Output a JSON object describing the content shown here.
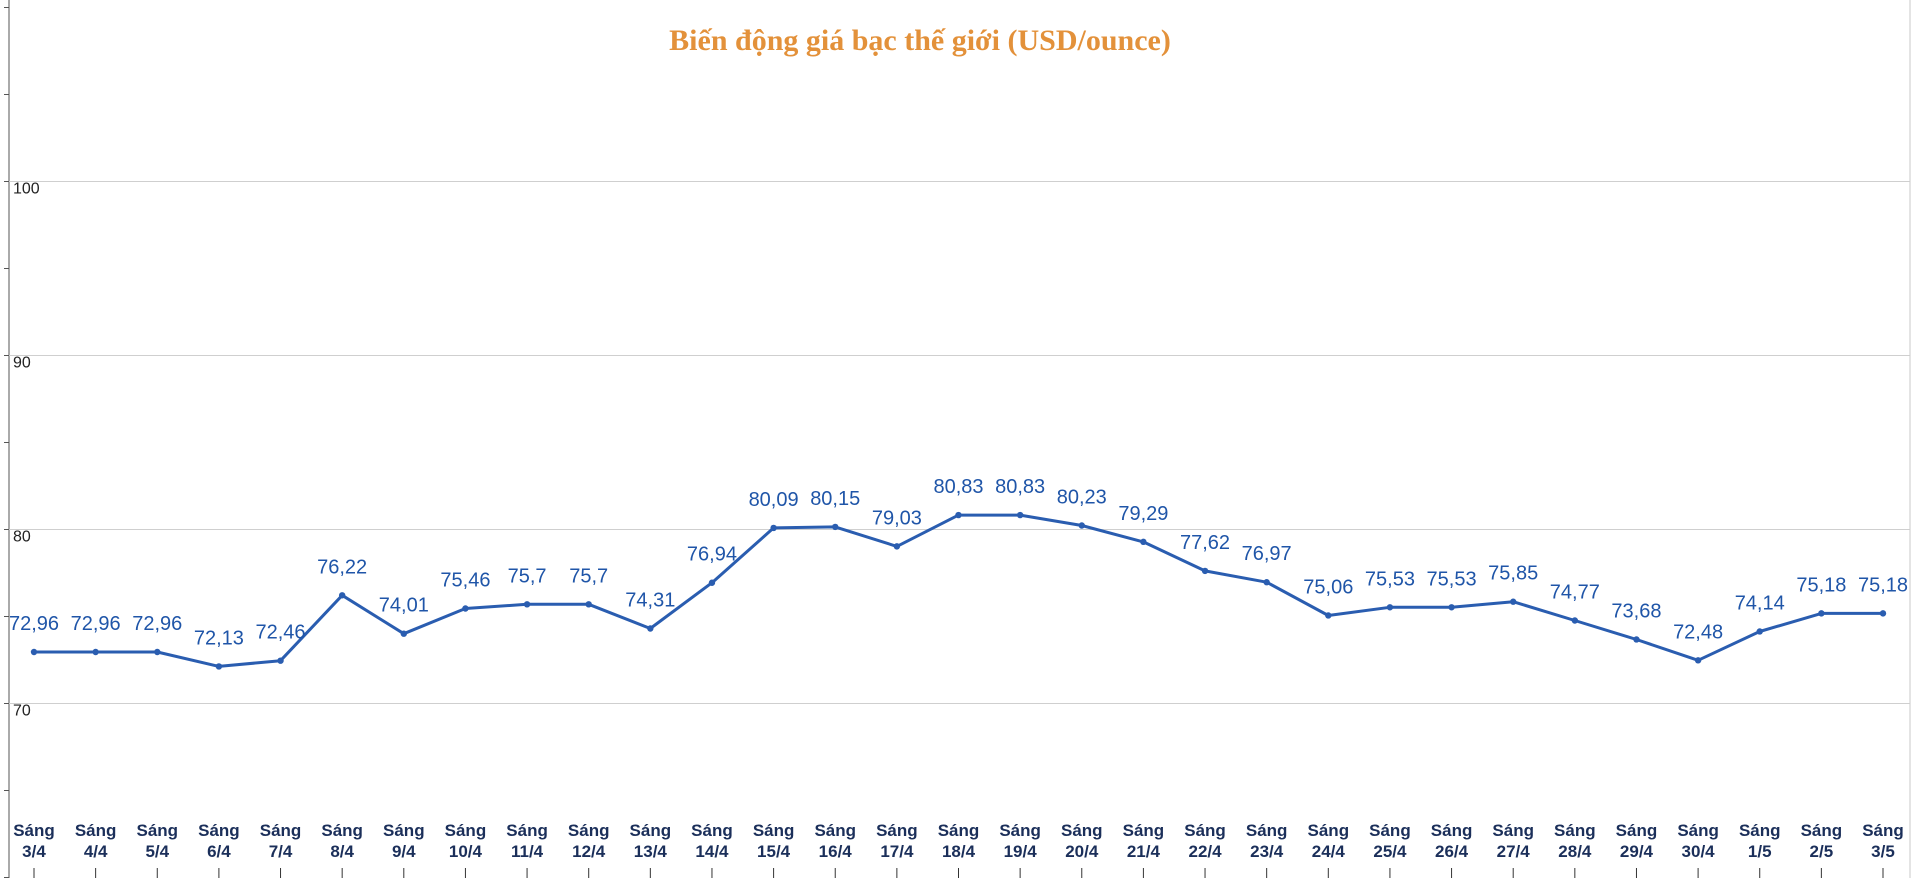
{
  "chart_data": {
    "type": "line",
    "title": "Biến động giá bạc thế giới (USD/ounce)",
    "title_color": "#e3913a",
    "line_color": "#2a5db0",
    "label_color": "#1f55a8",
    "xlabel": "",
    "ylabel": "",
    "ylim": [
      63,
      103
    ],
    "yticks": [
      70,
      80,
      90,
      100
    ],
    "grid": true,
    "legend": "none",
    "categories": [
      [
        "Sáng",
        "3/4"
      ],
      [
        "Sáng",
        "4/4"
      ],
      [
        "Sáng",
        "5/4"
      ],
      [
        "Sáng",
        "6/4"
      ],
      [
        "Sáng",
        "7/4"
      ],
      [
        "Sáng",
        "8/4"
      ],
      [
        "Sáng",
        "9/4"
      ],
      [
        "Sáng",
        "10/4"
      ],
      [
        "Sáng",
        "11/4"
      ],
      [
        "Sáng",
        "12/4"
      ],
      [
        "Sáng",
        "13/4"
      ],
      [
        "Sáng",
        "14/4"
      ],
      [
        "Sáng",
        "15/4"
      ],
      [
        "Sáng",
        "16/4"
      ],
      [
        "Sáng",
        "17/4"
      ],
      [
        "Sáng",
        "18/4"
      ],
      [
        "Sáng",
        "19/4"
      ],
      [
        "Sáng",
        "20/4"
      ],
      [
        "Sáng",
        "21/4"
      ],
      [
        "Sáng",
        "22/4"
      ],
      [
        "Sáng",
        "23/4"
      ],
      [
        "Sáng",
        "24/4"
      ],
      [
        "Sáng",
        "25/4"
      ],
      [
        "Sáng",
        "26/4"
      ],
      [
        "Sáng",
        "27/4"
      ],
      [
        "Sáng",
        "28/4"
      ],
      [
        "Sáng",
        "29/4"
      ],
      [
        "Sáng",
        "30/4"
      ],
      [
        "Sáng",
        "1/5"
      ],
      [
        "Sáng",
        "2/5"
      ],
      [
        "Sáng",
        "3/5"
      ]
    ],
    "values": [
      72.96,
      72.96,
      72.96,
      72.13,
      72.46,
      76.22,
      74.01,
      75.46,
      75.7,
      75.7,
      74.31,
      76.94,
      80.09,
      80.15,
      79.03,
      80.83,
      80.83,
      80.23,
      79.29,
      77.62,
      76.97,
      75.06,
      75.53,
      75.53,
      75.85,
      74.77,
      73.68,
      72.48,
      74.14,
      75.18,
      75.18
    ],
    "value_labels": [
      "72,96",
      "72,96",
      "72,96",
      "72,13",
      "72,46",
      "76,22",
      "74,01",
      "75,46",
      "75,7",
      "75,7",
      "74,31",
      "76,94",
      "80,09",
      "80,15",
      "79,03",
      "80,83",
      "80,83",
      "80,23",
      "79,29",
      "77,62",
      "76,97",
      "75,06",
      "75,53",
      "75,53",
      "75,85",
      "74,77",
      "73,68",
      "72,48",
      "74,14",
      "75,18",
      "75,18"
    ]
  }
}
